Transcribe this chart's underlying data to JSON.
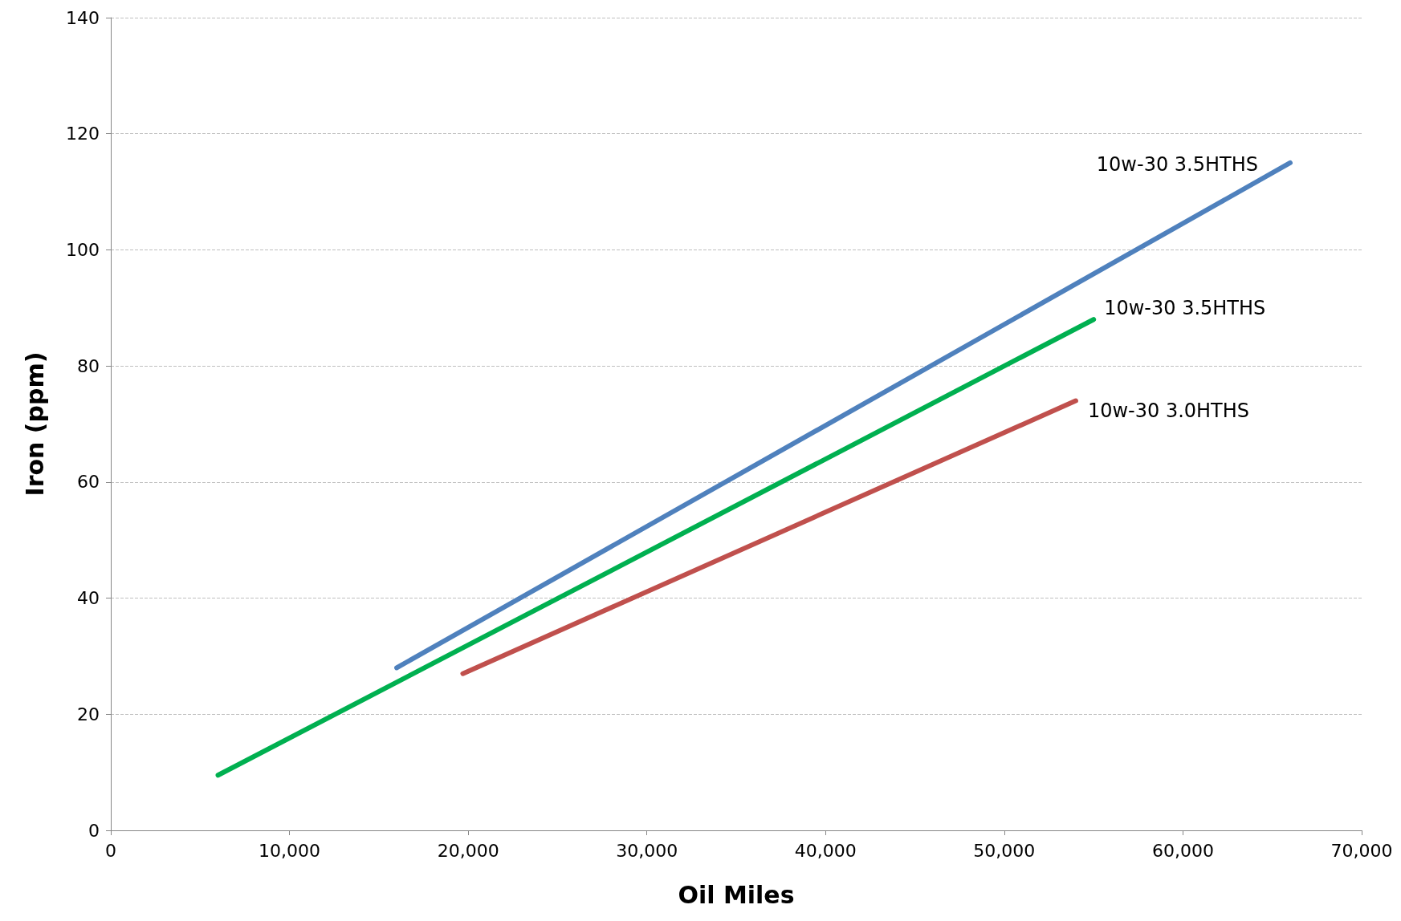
{
  "chart_data": {
    "type": "line",
    "xlabel": "Oil Miles",
    "ylabel": "Iron (ppm)",
    "xlim": [
      0,
      70000
    ],
    "xticks": [
      0,
      {
        "value": 10000,
        "label": "10,000"
      },
      {
        "value": 20000,
        "label": "20,000"
      },
      {
        "value": 30000,
        "label": "30,000"
      },
      {
        "value": 40000,
        "label": "40,000"
      },
      {
        "value": 50000,
        "label": "50,000"
      },
      {
        "value": 60000,
        "label": "60,000"
      },
      {
        "value": 70000,
        "label": "70,000"
      }
    ],
    "ylim": [
      0,
      140
    ],
    "yticks": [
      0,
      20,
      40,
      60,
      80,
      100,
      120,
      140
    ],
    "grid": "y",
    "legend": false,
    "marker": "none",
    "line_style": "solid",
    "series": [
      {
        "name": "10w-30 3.5HTHS",
        "color": "#4f81bd",
        "x": [
          16000,
          66000
        ],
        "values": [
          28,
          115
        ]
      },
      {
        "name": "10w-30 3.5HTHS",
        "color": "#00b050",
        "x": [
          6000,
          55000
        ],
        "values": [
          9.5,
          88
        ]
      },
      {
        "name": "10w-30 3.0HTHS",
        "color": "#c0504d",
        "x": [
          19700,
          54000
        ],
        "values": [
          27,
          74
        ]
      }
    ]
  }
}
